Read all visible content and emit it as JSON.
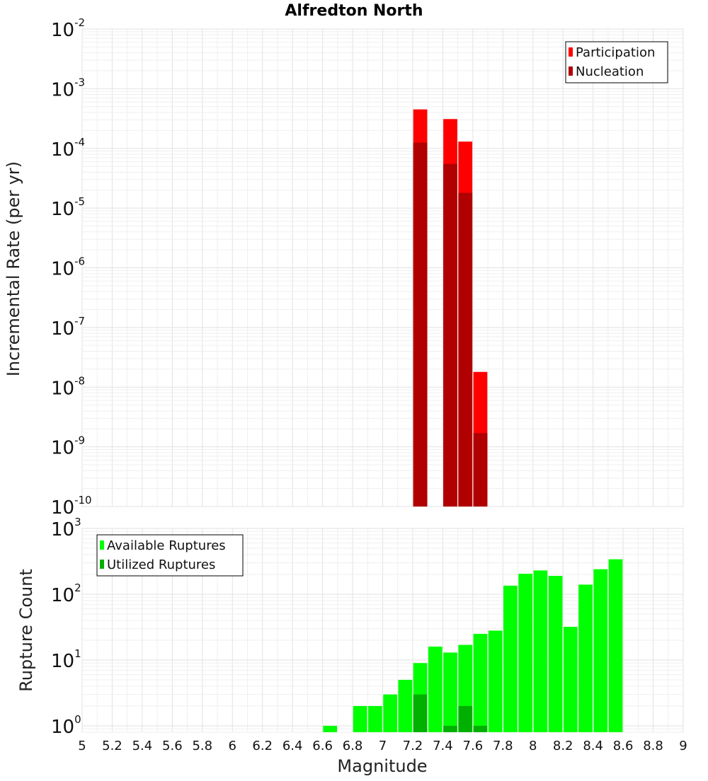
{
  "title": "Alfredton North",
  "chart_data": [
    {
      "type": "bar",
      "ylabel": "Incremental Rate (per yr)",
      "xlim": [
        5,
        9
      ],
      "ylim": [
        1e-10,
        0.01
      ],
      "yscale": "log",
      "grid": true,
      "legend_position": "top-right",
      "colors": {
        "Participation": "#ff0000",
        "Nucleation": "#b00000"
      },
      "series": [
        {
          "name": "Participation",
          "x": [
            7.25,
            7.45,
            7.55,
            7.65
          ],
          "values": [
            0.00045,
            0.00031,
            0.00013,
            1.8e-08
          ]
        },
        {
          "name": "Nucleation",
          "x": [
            7.25,
            7.45,
            7.55,
            7.65
          ],
          "values": [
            0.000125,
            5.5e-05,
            1.8e-05,
            1.7e-09
          ]
        }
      ],
      "yticks": [
        {
          "base": "10",
          "exp": "-2"
        },
        {
          "base": "10",
          "exp": "-3"
        },
        {
          "base": "10",
          "exp": "-4"
        },
        {
          "base": "10",
          "exp": "-5"
        },
        {
          "base": "10",
          "exp": "-6"
        },
        {
          "base": "10",
          "exp": "-7"
        },
        {
          "base": "10",
          "exp": "-8"
        },
        {
          "base": "10",
          "exp": "-9"
        },
        {
          "base": "10",
          "exp": "-10"
        }
      ]
    },
    {
      "type": "bar",
      "xlabel": "Magnitude",
      "ylabel": "Rupture Count",
      "xlim": [
        5,
        9
      ],
      "ylim": [
        0.8,
        1000
      ],
      "yscale": "log",
      "grid": true,
      "legend_position": "top-left",
      "colors": {
        "Available Ruptures": "#00ff00",
        "Utilized Ruptures": "#00b000"
      },
      "series": [
        {
          "name": "Available Ruptures",
          "x": [
            6.65,
            6.85,
            6.95,
            7.05,
            7.15,
            7.25,
            7.35,
            7.45,
            7.55,
            7.65,
            7.75,
            7.85,
            7.95,
            8.05,
            8.15,
            8.25,
            8.35,
            8.45,
            8.55
          ],
          "values": [
            1,
            2,
            2,
            3,
            5,
            9,
            16,
            13,
            17,
            25,
            28,
            135,
            205,
            230,
            190,
            32,
            140,
            240,
            340
          ]
        },
        {
          "name": "Utilized Ruptures",
          "x": [
            7.25,
            7.45,
            7.55,
            7.65
          ],
          "values": [
            3,
            1,
            2,
            1
          ]
        }
      ],
      "yticks": [
        {
          "base": "10",
          "exp": "3"
        },
        {
          "base": "10",
          "exp": "2"
        },
        {
          "base": "10",
          "exp": "1"
        },
        {
          "base": "10",
          "exp": "0"
        }
      ],
      "xticks": [
        "5",
        "5.2",
        "5.4",
        "5.6",
        "5.8",
        "6",
        "6.2",
        "6.4",
        "6.6",
        "6.8",
        "7",
        "7.2",
        "7.4",
        "7.6",
        "7.8",
        "8",
        "8.2",
        "8.4",
        "8.6",
        "8.8",
        "9"
      ]
    }
  ]
}
